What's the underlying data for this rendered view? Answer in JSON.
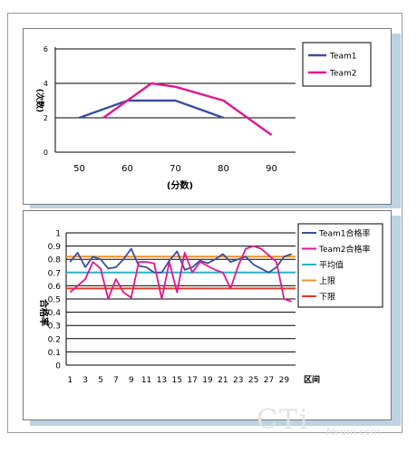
{
  "chart_data": [
    {
      "type": "line",
      "title": "",
      "xlabel": "(分数)",
      "ylabel": "(次数)",
      "xlim": [
        45,
        95
      ],
      "ylim": [
        0,
        6
      ],
      "x_ticks": [
        "50",
        "60",
        "70",
        "80",
        "90"
      ],
      "y_ticks": [
        "0",
        "2",
        "4",
        "6"
      ],
      "grid": true,
      "legend_position": "right",
      "series": [
        {
          "name": "Team1",
          "color": "#3a4fa0",
          "x": [
            50,
            60,
            70,
            80
          ],
          "values": [
            2,
            3,
            3,
            2
          ]
        },
        {
          "name": "Team2",
          "color": "#e0188e",
          "x": [
            55,
            65,
            70,
            80,
            90
          ],
          "values": [
            2,
            4,
            3.8,
            3,
            1
          ]
        }
      ]
    },
    {
      "type": "line",
      "title": "",
      "xlabel": "区间",
      "ylabel": "合格率",
      "ylim": [
        0,
        1
      ],
      "x_tick_labels": [
        "1",
        "3",
        "5",
        "7",
        "9",
        "11",
        "13",
        "15",
        "17",
        "19",
        "21",
        "23",
        "25",
        "27",
        "29"
      ],
      "y_ticks": [
        "0",
        "0.1",
        "0.2",
        "0.3",
        "0.4",
        "0.5",
        "0.6",
        "0.7",
        "0.8",
        "0.9",
        "1"
      ],
      "grid": true,
      "legend_position": "right",
      "x": [
        1,
        2,
        3,
        4,
        5,
        6,
        7,
        8,
        9,
        10,
        11,
        12,
        13,
        14,
        15,
        16,
        17,
        18,
        19,
        20,
        21,
        22,
        23,
        24,
        25,
        26,
        27,
        28,
        29,
        30
      ],
      "series": [
        {
          "name": "Team1合格率",
          "color": "#3a4fa0",
          "values": [
            0.78,
            0.85,
            0.74,
            0.82,
            0.8,
            0.73,
            0.74,
            0.8,
            0.88,
            0.75,
            0.74,
            0.7,
            0.7,
            0.79,
            0.86,
            0.72,
            0.74,
            0.79,
            0.77,
            0.8,
            0.84,
            0.78,
            0.8,
            0.82,
            0.76,
            0.73,
            0.7,
            0.74,
            0.82,
            0.84
          ]
        },
        {
          "name": "Team2合格率",
          "color": "#e0188e",
          "values": [
            0.55,
            0.6,
            0.65,
            0.78,
            0.73,
            0.5,
            0.65,
            0.55,
            0.51,
            0.78,
            0.78,
            0.77,
            0.5,
            0.78,
            0.55,
            0.85,
            0.7,
            0.78,
            0.75,
            0.72,
            0.7,
            0.58,
            0.75,
            0.88,
            0.9,
            0.88,
            0.83,
            0.78,
            0.5,
            0.48
          ]
        },
        {
          "name": "平均值",
          "color": "#2ab2c8",
          "constant": 0.7
        },
        {
          "name": "上限",
          "color": "#f0902a",
          "constant": 0.82
        },
        {
          "name": "下限",
          "color": "#e03a26",
          "constant": 0.58
        }
      ]
    }
  ],
  "watermark": {
    "main": "CTi",
    "sub": "forum.com"
  }
}
